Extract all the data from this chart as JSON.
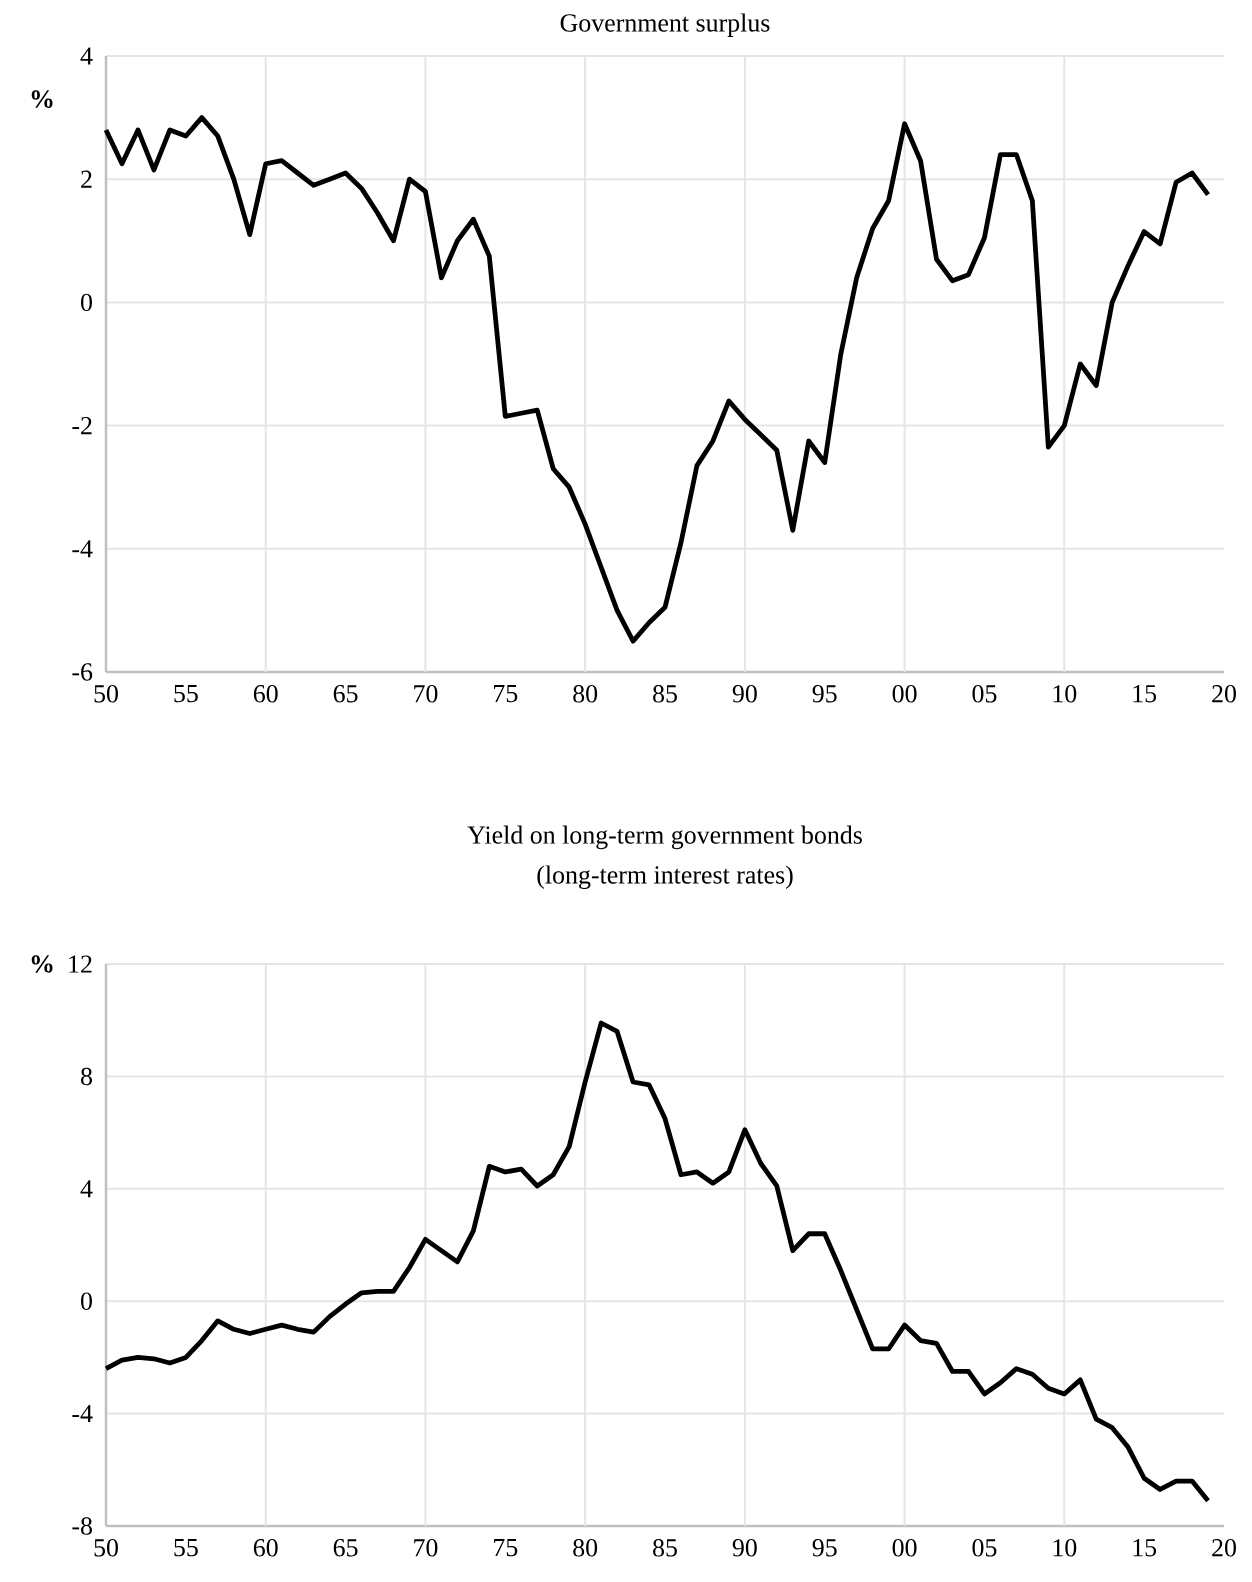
{
  "chart_data": [
    {
      "type": "line",
      "title": "Government surplus",
      "ylabel": "%",
      "color": "#000000",
      "grid": true,
      "x": [
        1950,
        1951,
        1952,
        1953,
        1954,
        1955,
        1956,
        1957,
        1958,
        1959,
        1960,
        1961,
        1962,
        1963,
        1964,
        1965,
        1966,
        1967,
        1968,
        1969,
        1970,
        1971,
        1972,
        1973,
        1974,
        1975,
        1976,
        1977,
        1978,
        1979,
        1980,
        1981,
        1982,
        1983,
        1984,
        1985,
        1986,
        1987,
        1988,
        1989,
        1990,
        1991,
        1992,
        1993,
        1994,
        1995,
        1996,
        1997,
        1998,
        1999,
        2000,
        2001,
        2002,
        2003,
        2004,
        2005,
        2006,
        2007,
        2008,
        2009,
        2010,
        2011,
        2012,
        2013,
        2014,
        2015,
        2016,
        2017,
        2018,
        2019
      ],
      "values": [
        2.8,
        2.25,
        2.8,
        2.15,
        2.8,
        2.7,
        3.0,
        2.7,
        2.0,
        1.1,
        2.25,
        2.3,
        2.1,
        1.9,
        2.0,
        2.1,
        1.85,
        1.45,
        1.0,
        2.0,
        1.8,
        0.4,
        1.0,
        1.35,
        0.75,
        -1.85,
        -1.8,
        -1.75,
        -2.7,
        -3.0,
        -3.6,
        -4.3,
        -5.0,
        -5.5,
        -5.2,
        -4.95,
        -3.9,
        -2.65,
        -2.25,
        -1.6,
        -1.9,
        -2.15,
        -2.4,
        -3.7,
        -2.25,
        -2.6,
        -0.85,
        0.4,
        1.2,
        1.65,
        2.9,
        2.3,
        0.7,
        0.35,
        0.45,
        1.05,
        2.4,
        2.4,
        1.65,
        -2.35,
        -2.0,
        -1.0,
        -1.35,
        0.0,
        0.6,
        1.15,
        0.95,
        1.95,
        2.1,
        1.75
      ],
      "xlim": [
        1950,
        2020
      ],
      "xticks": [
        {
          "value": 1950,
          "label": "50"
        },
        {
          "value": 1955,
          "label": "55"
        },
        {
          "value": 1960,
          "label": "60"
        },
        {
          "value": 1965,
          "label": "65"
        },
        {
          "value": 1970,
          "label": "70"
        },
        {
          "value": 1975,
          "label": "75"
        },
        {
          "value": 1980,
          "label": "80"
        },
        {
          "value": 1985,
          "label": "85"
        },
        {
          "value": 1990,
          "label": "90"
        },
        {
          "value": 1995,
          "label": "95"
        },
        {
          "value": 2000,
          "label": "00"
        },
        {
          "value": 2005,
          "label": "05"
        },
        {
          "value": 2010,
          "label": "10"
        },
        {
          "value": 2015,
          "label": "15"
        },
        {
          "value": 2020,
          "label": "20"
        }
      ],
      "ylim": [
        -6,
        4
      ],
      "yticks": [
        -6,
        -4,
        -2,
        0,
        2,
        4
      ]
    },
    {
      "type": "line",
      "title": "Yield on long-term government bonds",
      "subtitle": "(long-term interest rates)",
      "ylabel": "%",
      "color": "#000000",
      "grid": true,
      "x": [
        1950,
        1951,
        1952,
        1953,
        1954,
        1955,
        1956,
        1957,
        1958,
        1959,
        1960,
        1961,
        1962,
        1963,
        1964,
        1965,
        1966,
        1967,
        1968,
        1969,
        1970,
        1971,
        1972,
        1973,
        1974,
        1975,
        1976,
        1977,
        1978,
        1979,
        1980,
        1981,
        1982,
        1983,
        1984,
        1985,
        1986,
        1987,
        1988,
        1989,
        1990,
        1991,
        1992,
        1993,
        1994,
        1995,
        1996,
        1997,
        1998,
        1999,
        2000,
        2001,
        2002,
        2003,
        2004,
        2005,
        2006,
        2007,
        2008,
        2009,
        2010,
        2011,
        2012,
        2013,
        2014,
        2015,
        2016,
        2017,
        2018,
        2019
      ],
      "values": [
        -2.4,
        -2.1,
        -2.0,
        -2.05,
        -2.2,
        -2.0,
        -1.4,
        -0.7,
        -1.0,
        -1.15,
        -1.0,
        -0.85,
        -1.0,
        -1.1,
        -0.55,
        -0.1,
        0.3,
        0.35,
        0.35,
        1.2,
        2.2,
        1.8,
        1.4,
        2.5,
        4.8,
        4.6,
        4.7,
        4.1,
        4.5,
        5.5,
        7.8,
        9.9,
        9.6,
        7.8,
        7.7,
        6.5,
        4.5,
        4.6,
        4.2,
        4.6,
        6.1,
        4.9,
        4.1,
        1.8,
        2.4,
        2.4,
        1.1,
        -0.3,
        -1.7,
        -1.7,
        -0.85,
        -1.4,
        -1.5,
        -2.5,
        -2.5,
        -3.3,
        -2.9,
        -2.4,
        -2.6,
        -3.1,
        -3.3,
        -2.8,
        -4.2,
        -4.5,
        -5.2,
        -6.3,
        -6.7,
        -6.4,
        -6.4,
        -7.1
      ],
      "xlim": [
        1950,
        2020
      ],
      "xticks": [
        {
          "value": 1950,
          "label": "50"
        },
        {
          "value": 1955,
          "label": "55"
        },
        {
          "value": 1960,
          "label": "60"
        },
        {
          "value": 1965,
          "label": "65"
        },
        {
          "value": 1970,
          "label": "70"
        },
        {
          "value": 1975,
          "label": "75"
        },
        {
          "value": 1980,
          "label": "80"
        },
        {
          "value": 1985,
          "label": "85"
        },
        {
          "value": 1990,
          "label": "90"
        },
        {
          "value": 1995,
          "label": "95"
        },
        {
          "value": 2000,
          "label": "00"
        },
        {
          "value": 2005,
          "label": "05"
        },
        {
          "value": 2010,
          "label": "10"
        },
        {
          "value": 2015,
          "label": "15"
        },
        {
          "value": 2020,
          "label": "20"
        }
      ],
      "ylim": [
        -8,
        12
      ],
      "yticks": [
        -8,
        -4,
        0,
        4,
        8,
        12
      ]
    }
  ]
}
